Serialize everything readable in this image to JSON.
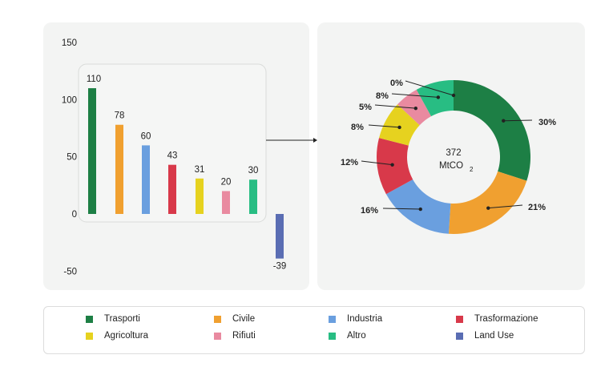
{
  "chart_data": [
    {
      "type": "bar",
      "categories": [
        "Trasporti",
        "Civile",
        "Industria",
        "Trasformazione",
        "Agricoltura",
        "Rifiuti",
        "Altro",
        "Land Use"
      ],
      "values": [
        110,
        78,
        60,
        43,
        31,
        20,
        30,
        -39
      ],
      "value_labels": [
        "110",
        "78",
        "60",
        "43",
        "31",
        "20",
        "30",
        "-39"
      ],
      "y_ticks": [
        "150",
        "100",
        "50",
        "0",
        "-50"
      ],
      "ylim": [
        -50,
        150
      ],
      "colors": [
        "#1d7f45",
        "#f0a030",
        "#6a9fdf",
        "#d8394a",
        "#e6d21f",
        "#e98aa0",
        "#28bd83",
        "#5a6db3"
      ]
    },
    {
      "type": "pie",
      "center_value": "372",
      "center_unit": "MtCO",
      "center_unit_sub": "2",
      "slices": [
        {
          "category": "Trasporti",
          "value": 30,
          "label": "30%"
        },
        {
          "category": "Civile",
          "value": 21,
          "label": "21%"
        },
        {
          "category": "Industria",
          "value": 16,
          "label": "16%"
        },
        {
          "category": "Trasformazione",
          "value": 12,
          "label": "12%"
        },
        {
          "category": "Agricoltura",
          "value": 8,
          "label": "8%"
        },
        {
          "category": "Rifiuti",
          "value": 5,
          "label": "5%"
        },
        {
          "category": "Altro",
          "value": 8,
          "label": "8%"
        },
        {
          "category": "Land Use",
          "value": 0,
          "label": "0%"
        }
      ],
      "colors": [
        "#1d7f45",
        "#f0a030",
        "#6a9fdf",
        "#d8394a",
        "#e6d21f",
        "#e98aa0",
        "#28bd83",
        "#5a6db3"
      ]
    }
  ],
  "legend": [
    {
      "label": "Trasporti",
      "color": "#1d7f45"
    },
    {
      "label": "Civile",
      "color": "#f0a030"
    },
    {
      "label": "Industria",
      "color": "#6a9fdf"
    },
    {
      "label": "Trasformazione",
      "color": "#d8394a"
    },
    {
      "label": "Agricoltura",
      "color": "#e6d21f"
    },
    {
      "label": "Rifiuti",
      "color": "#e98aa0"
    },
    {
      "label": "Altro",
      "color": "#28bd83"
    },
    {
      "label": "Land Use",
      "color": "#5a6db3"
    }
  ]
}
